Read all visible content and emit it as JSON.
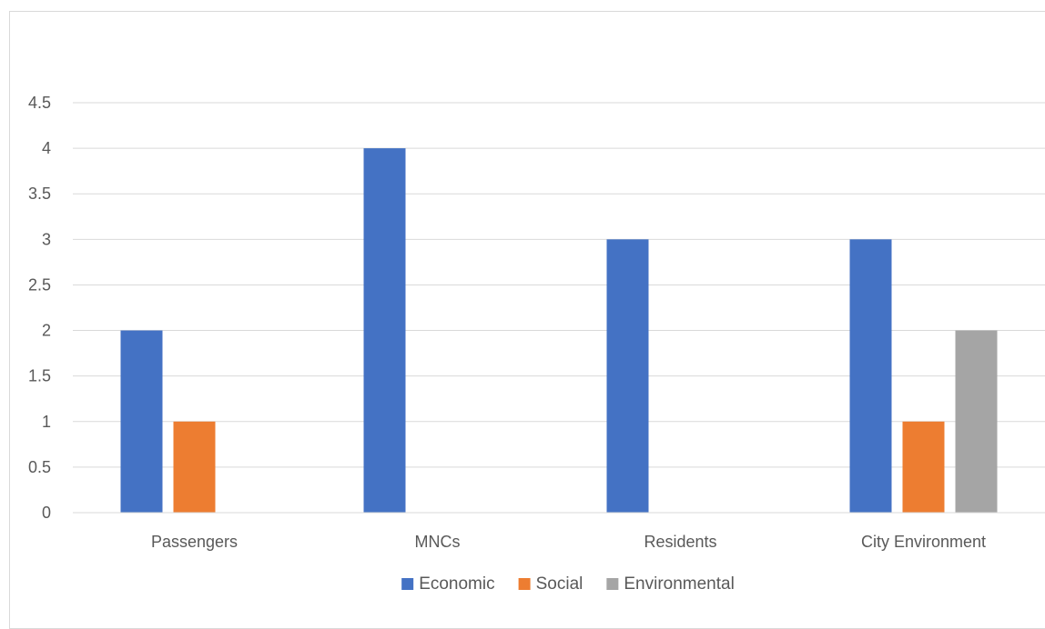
{
  "chart_data": {
    "type": "bar",
    "title": "",
    "xlabel": "",
    "ylabel": "",
    "categories": [
      "Passengers",
      "MNCs",
      "Residents",
      "City Environment"
    ],
    "series": [
      {
        "name": "Economic",
        "color": "#4472c4",
        "values": [
          2,
          4,
          3,
          3
        ]
      },
      {
        "name": "Social",
        "color": "#ed7d31",
        "values": [
          1,
          0,
          0,
          1
        ]
      },
      {
        "name": "Environmental",
        "color": "#a5a5a5",
        "values": [
          0,
          0,
          0,
          2
        ]
      }
    ],
    "ylim": [
      0,
      4.5
    ],
    "yticks": [
      "0",
      "0.5",
      "1",
      "1.5",
      "2",
      "2.5",
      "3",
      "3.5",
      "4",
      "4.5"
    ],
    "grid": true,
    "legend_position": "bottom"
  }
}
